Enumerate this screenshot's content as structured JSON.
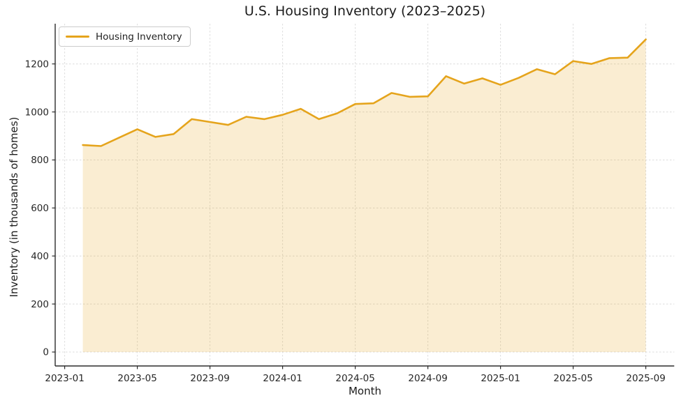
{
  "figure": {
    "title": "U.S. Housing Inventory (2023–2025)",
    "xlabel": "Month",
    "ylabel": "Inventory (in thousands of homes)"
  },
  "legend": {
    "items": [
      {
        "label": "Housing Inventory",
        "color": "#E5A41C"
      }
    ],
    "position": "upper-left"
  },
  "colors": {
    "line": "#E5A41C",
    "area_fill": "#F9ECD2",
    "grid": "#DCDCDC",
    "spine": "#2b2b2b",
    "text": "#1c1c1c",
    "tick_text": "#262626",
    "background": "#ffffff"
  },
  "chart_data": {
    "type": "area",
    "title": "U.S. Housing Inventory (2023–2025)",
    "xlabel": "Month",
    "ylabel": "Inventory (in thousands of homes)",
    "grid": "dashed",
    "legend_position": "upper-left",
    "x_ticks": [
      "2023-01",
      "2023-05",
      "2023-09",
      "2024-01",
      "2024-05",
      "2024-09",
      "2025-01",
      "2025-05",
      "2025-09"
    ],
    "y_ticks": [
      0,
      200,
      400,
      600,
      800,
      1000,
      1200
    ],
    "ylim": [
      -65,
      1367
    ],
    "series": [
      {
        "name": "Housing Inventory",
        "color": "#E5A41C",
        "fill": true,
        "fill_opacity": 0.2,
        "x": [
          "2023-02",
          "2023-03",
          "2023-04",
          "2023-05",
          "2023-06",
          "2023-07",
          "2023-08",
          "2023-09",
          "2023-10",
          "2023-11",
          "2023-12",
          "2024-01",
          "2024-02",
          "2024-03",
          "2024-04",
          "2024-05",
          "2024-06",
          "2024-07",
          "2024-08",
          "2024-09",
          "2024-10",
          "2024-11",
          "2024-12",
          "2025-01",
          "2025-02",
          "2025-03",
          "2025-04",
          "2025-05",
          "2025-06",
          "2025-07",
          "2025-08",
          "2025-09"
        ],
        "values": [
          862,
          858,
          893,
          928,
          896,
          908,
          970,
          958,
          946,
          980,
          970,
          988,
          1013,
          970,
          994,
          1033,
          1036,
          1079,
          1063,
          1065,
          1149,
          1118,
          1140,
          1113,
          1142,
          1178,
          1157,
          1212,
          1200,
          1224,
          1226,
          1302
        ]
      }
    ]
  }
}
